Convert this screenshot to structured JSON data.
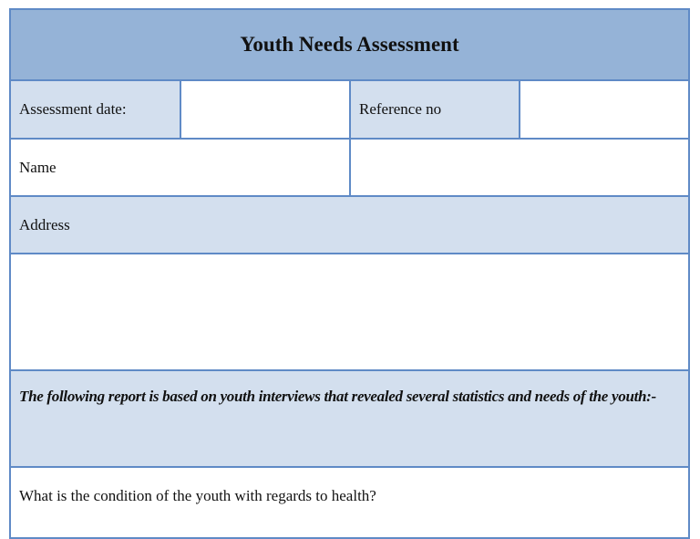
{
  "title": "Youth Needs Assessment",
  "fields": {
    "assessment_date_label": "Assessment date:",
    "assessment_date_value": "",
    "reference_no_label": "Reference no",
    "reference_no_value": "",
    "name_label": "Name",
    "name_value": "",
    "address_label": "Address",
    "address_value": ""
  },
  "report_intro": "The following report is based on youth interviews that revealed several statistics and needs of the youth:-",
  "questions": [
    "What is the condition of the youth with regards to health?"
  ],
  "colors": {
    "header_bg": "#95b3d7",
    "label_bg": "#d3dfee",
    "border": "#5f8ac6"
  }
}
